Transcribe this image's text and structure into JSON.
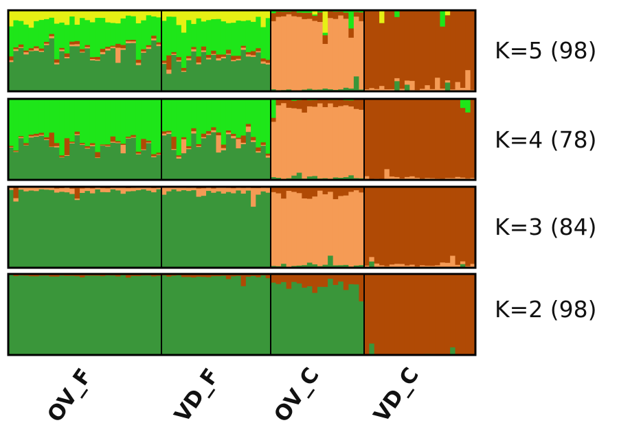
{
  "chart_data": {
    "type": "structure-barplot",
    "title": "",
    "populations": [
      {
        "name": "OV_F",
        "n": 30
      },
      {
        "name": "VD_F",
        "n": 22
      },
      {
        "name": "OV_C",
        "n": 18
      },
      {
        "name": "VD_C",
        "n": 22
      }
    ],
    "cluster_colors": {
      "dark_green": "#3a963a",
      "bright_green": "#1ee619",
      "yellow": "#e6f014",
      "light_orange": "#f59b55",
      "rust": "#b04a05"
    },
    "panels": [
      {
        "label": "K=5 (98)",
        "K": 5,
        "mean_proportions": {
          "OV_F": {
            "dark_green": 0.5,
            "bright_green": 0.33,
            "yellow": 0.12,
            "light_orange": 0.02,
            "rust": 0.03
          },
          "VD_F": {
            "dark_green": 0.4,
            "bright_green": 0.42,
            "yellow": 0.12,
            "light_orange": 0.02,
            "rust": 0.04
          },
          "OV_C": {
            "dark_green": 0.03,
            "bright_green": 0.02,
            "yellow": 0.0,
            "light_orange": 0.88,
            "rust": 0.07
          },
          "VD_C": {
            "dark_green": 0.0,
            "bright_green": 0.0,
            "yellow": 0.0,
            "light_orange": 0.03,
            "rust": 0.97
          }
        }
      },
      {
        "label": "K=4 (78)",
        "K": 4,
        "mean_proportions": {
          "OV_F": {
            "dark_green": 0.42,
            "bright_green": 0.55,
            "light_orange": 0.01,
            "rust": 0.02
          },
          "VD_F": {
            "dark_green": 0.45,
            "bright_green": 0.5,
            "light_orange": 0.02,
            "rust": 0.03
          },
          "OV_C": {
            "dark_green": 0.03,
            "bright_green": 0.01,
            "light_orange": 0.88,
            "rust": 0.08
          },
          "VD_C": {
            "dark_green": 0.0,
            "bright_green": 0.0,
            "light_orange": 0.03,
            "rust": 0.97
          }
        }
      },
      {
        "label": "K=3 (84)",
        "K": 3,
        "mean_proportions": {
          "OV_F": {
            "dark_green": 0.95,
            "light_orange": 0.04,
            "rust": 0.01
          },
          "VD_F": {
            "dark_green": 0.94,
            "light_orange": 0.05,
            "rust": 0.01
          },
          "OV_C": {
            "dark_green": 0.03,
            "light_orange": 0.89,
            "rust": 0.08
          },
          "VD_C": {
            "dark_green": 0.0,
            "light_orange": 0.04,
            "rust": 0.96
          }
        }
      },
      {
        "label": "K=2 (98)",
        "K": 2,
        "mean_proportions": {
          "OV_F": {
            "dark_green": 0.98,
            "rust": 0.02
          },
          "VD_F": {
            "dark_green": 0.97,
            "rust": 0.03
          },
          "OV_C": {
            "dark_green": 0.88,
            "rust": 0.12
          },
          "VD_C": {
            "dark_green": 0.01,
            "rust": 0.99
          }
        }
      }
    ],
    "y_range": [
      0,
      1
    ],
    "legend": "none"
  }
}
